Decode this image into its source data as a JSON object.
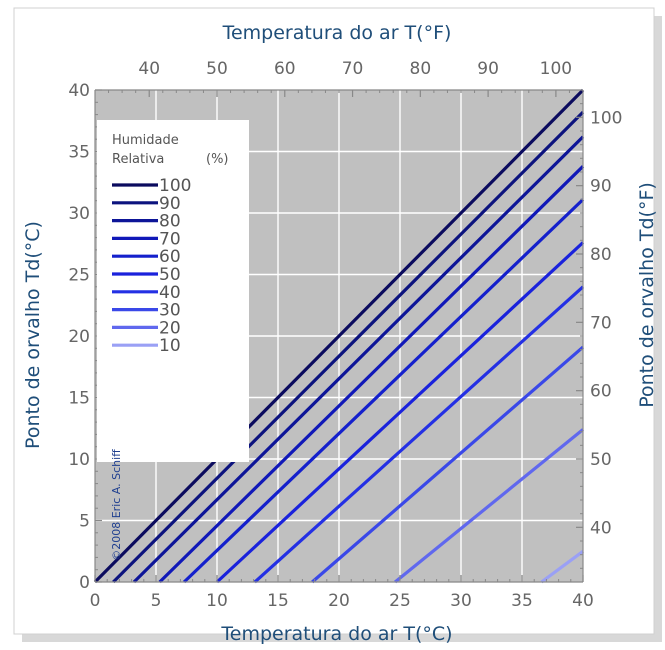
{
  "chart_data": {
    "type": "line",
    "title": "",
    "xlabel": "Temperatura do ar T(°C)",
    "ylabel": "Ponto de orvalho Td(°C)",
    "x2label": "Temperatura do ar T(°F)",
    "y2label": "Ponto de orvalho Td(°F)",
    "xlim": [
      0,
      40
    ],
    "ylim": [
      0,
      40
    ],
    "x_ticks": [
      0,
      5,
      10,
      15,
      20,
      25,
      30,
      35,
      40
    ],
    "y_ticks": [
      0,
      5,
      10,
      15,
      20,
      25,
      30,
      35,
      40
    ],
    "x2_ticks": [
      40,
      50,
      60,
      70,
      80,
      90,
      100
    ],
    "y2_ticks": [
      40,
      50,
      60,
      70,
      80,
      90,
      100
    ],
    "grid": true,
    "legend": {
      "position": "top-left",
      "title_line1": "Humidade",
      "title_line2": "Relativa",
      "title_unit": "(%)"
    },
    "copyright": "©2008 Eric A. Schiff",
    "series": [
      {
        "name": "100",
        "color": "#0b0b5e",
        "x": [
          0,
          40
        ],
        "y": [
          0,
          40
        ]
      },
      {
        "name": "90",
        "color": "#0c137e",
        "x": [
          1.5,
          40
        ],
        "y": [
          0,
          38.2
        ]
      },
      {
        "name": "80",
        "color": "#0d1598",
        "x": [
          3.2,
          40
        ],
        "y": [
          0,
          36.2
        ]
      },
      {
        "name": "70",
        "color": "#1018b8",
        "x": [
          5.3,
          40
        ],
        "y": [
          0,
          33.8
        ]
      },
      {
        "name": "60",
        "color": "#1420cc",
        "x": [
          7.3,
          40
        ],
        "y": [
          0,
          31.1
        ]
      },
      {
        "name": "50",
        "color": "#1a22dc",
        "x": [
          10.0,
          40
        ],
        "y": [
          0,
          27.6
        ]
      },
      {
        "name": "40",
        "color": "#2430e4",
        "x": [
          13.1,
          40
        ],
        "y": [
          0,
          24.0
        ]
      },
      {
        "name": "30",
        "color": "#3a48e8",
        "x": [
          17.8,
          40
        ],
        "y": [
          0,
          19.1
        ]
      },
      {
        "name": "20",
        "color": "#6068ee",
        "x": [
          24.6,
          40
        ],
        "y": [
          0,
          12.4
        ]
      },
      {
        "name": "10",
        "color": "#9aa0f5",
        "x": [
          36.6,
          40
        ],
        "y": [
          0,
          2.5
        ]
      }
    ]
  }
}
